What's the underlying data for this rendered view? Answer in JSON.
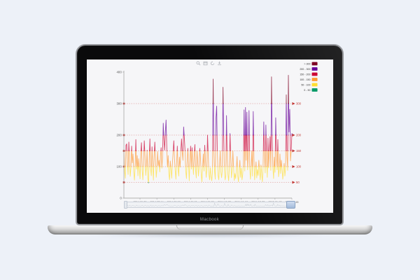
{
  "laptop": {
    "label": "Macbook"
  },
  "toolbox": {
    "icons": [
      "data-zoom",
      "data-view",
      "restore",
      "save-image"
    ]
  },
  "chart_data": {
    "type": "line",
    "title": "",
    "xlabel": "",
    "ylabel": "",
    "ylim": [
      0,
      400
    ],
    "y_ticks": [
      0,
      100,
      200,
      300,
      400
    ],
    "x_labels": [
      "2014-06-29",
      "2014-07-14",
      "2014-08-08",
      "2014-09-01",
      "2014-09-26",
      "2014-10-22",
      "2014-11-18",
      "2014-12-22",
      "2015-01-17",
      "2015-02-15"
    ],
    "marklines": [
      50,
      100,
      150,
      200,
      300
    ],
    "markline_color": "#c23531",
    "legend_position": "top-right",
    "grid": false,
    "bands": [
      {
        "label": "> 300",
        "min": 300,
        "max": 400,
        "color": "#7e0023"
      },
      {
        "label": "200 - 300",
        "min": 200,
        "max": 300,
        "color": "#660099"
      },
      {
        "label": "150 - 200",
        "min": 150,
        "max": 200,
        "color": "#cc0033"
      },
      {
        "label": "100 - 150",
        "min": 100,
        "max": 150,
        "color": "#ff9933"
      },
      {
        "label": "50 - 100",
        "min": 50,
        "max": 100,
        "color": "#ffde33"
      },
      {
        "label": "0 - 50",
        "min": 0,
        "max": 50,
        "color": "#009966"
      }
    ],
    "values": [
      148,
      85,
      63,
      168,
      172,
      110,
      75,
      178,
      130,
      69,
      95,
      165,
      112,
      140,
      82,
      57,
      102,
      186,
      92,
      135,
      71,
      125,
      96,
      61,
      142,
      176,
      88,
      58,
      113,
      182,
      136,
      72,
      97,
      152,
      63,
      48,
      122,
      188,
      92,
      71,
      163,
      107,
      57,
      132,
      178,
      118,
      66,
      92,
      148,
      103,
      120,
      83,
      135,
      160,
      95,
      130,
      238,
      185,
      152,
      210,
      248,
      160,
      98,
      135,
      75,
      58,
      118,
      92,
      63,
      108,
      145,
      182,
      125,
      88,
      60,
      112,
      165,
      95,
      70,
      130,
      98,
      150,
      188,
      146,
      120,
      226,
      192,
      150,
      86,
      62,
      115,
      158,
      106,
      55,
      128,
      165,
      92,
      160,
      110,
      75,
      135,
      170,
      88,
      64,
      150,
      118,
      70,
      96,
      158,
      125,
      76,
      52,
      100,
      140,
      86,
      168,
      122,
      66,
      90,
      200,
      135,
      75,
      58,
      96,
      70,
      55,
      80,
      378,
      150,
      85,
      60,
      255,
      292,
      140,
      72,
      58,
      96,
      150,
      83,
      65,
      88,
      352,
      200,
      90,
      58,
      72,
      262,
      120,
      75,
      55,
      95,
      205,
      130,
      65,
      88,
      150,
      98,
      56,
      78,
      62,
      90,
      132,
      70,
      52,
      85,
      120,
      66,
      95,
      58,
      74,
      110,
      280,
      86,
      288,
      120,
      273,
      90,
      140,
      278,
      98,
      60,
      96,
      150,
      70,
      275,
      130,
      58,
      85,
      115,
      64,
      90,
      72,
      120,
      86,
      58,
      105,
      78,
      52,
      96,
      242,
      138,
      80,
      232,
      120,
      66,
      190,
      96,
      148,
      195,
      88,
      385,
      180,
      95,
      62,
      130,
      82,
      255,
      140,
      90,
      186,
      68,
      90,
      140,
      78,
      120,
      95,
      60,
      85,
      110,
      70,
      92,
      328,
      135,
      88,
      390,
      210,
      282,
      118,
      150,
      205
    ]
  }
}
